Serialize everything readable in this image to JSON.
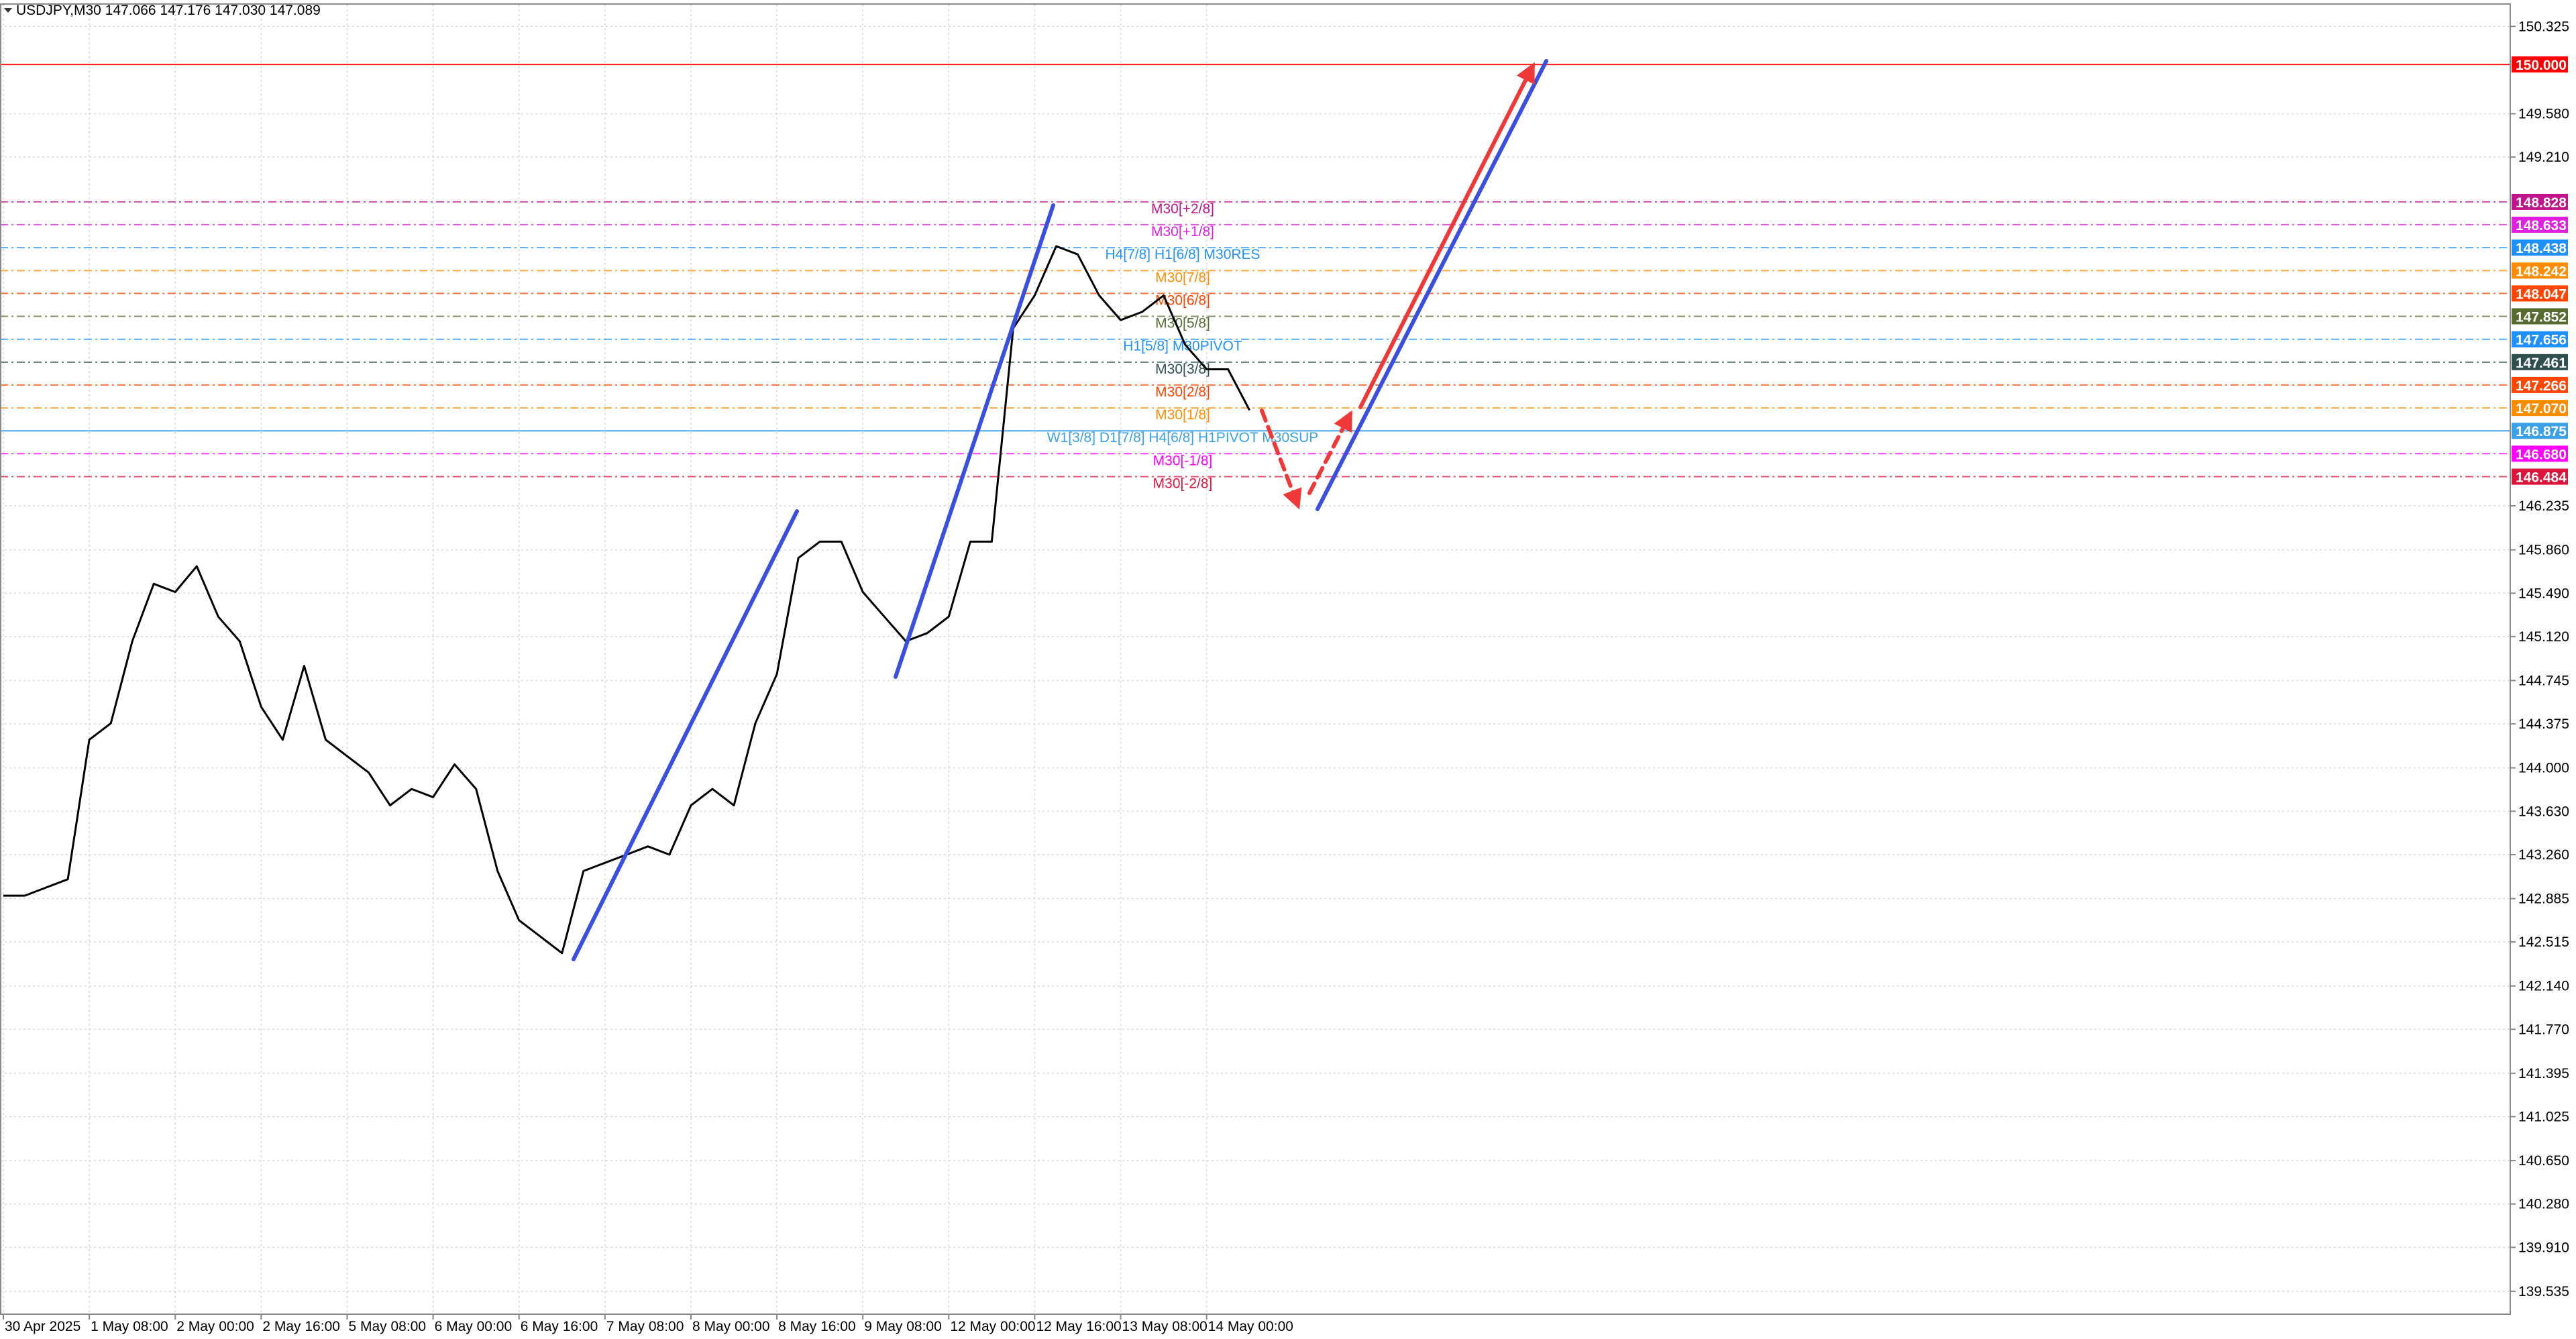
{
  "chart_data": {
    "type": "line",
    "title": "USDJPY,M30  147.066 147.176 147.030 147.089",
    "categories": [
      "30 Apr 2025",
      null,
      null,
      null,
      "1 May 08:00",
      null,
      null,
      null,
      "2 May 00:00",
      null,
      null,
      null,
      "2 May 16:00",
      null,
      null,
      null,
      "5 May 08:00",
      null,
      null,
      null,
      "6 May 00:00",
      null,
      null,
      null,
      "6 May 16:00",
      null,
      null,
      null,
      "7 May 08:00",
      null,
      null,
      null,
      "8 May 00:00",
      null,
      null,
      null,
      "8 May 16:00",
      null,
      null,
      null,
      "9 May 08:00",
      null,
      null,
      null,
      "12 May 00:00",
      null,
      null,
      null,
      "12 May 16:00",
      null,
      null,
      null,
      "13 May 08:00",
      null,
      null,
      null,
      "14 May 00:00",
      null,
      null
    ],
    "values": [
      142.91,
      142.91,
      142.98,
      143.05,
      144.24,
      144.38,
      145.08,
      145.57,
      145.5,
      145.72,
      145.29,
      145.08,
      144.52,
      144.24,
      144.87,
      144.24,
      144.1,
      143.96,
      143.68,
      143.82,
      143.75,
      144.03,
      143.82,
      143.12,
      142.7,
      142.56,
      142.42,
      143.12,
      143.19,
      143.26,
      143.33,
      143.26,
      143.68,
      143.82,
      143.68,
      144.38,
      144.8,
      145.79,
      145.93,
      145.93,
      145.5,
      145.29,
      145.08,
      145.15,
      145.29,
      145.93,
      145.93,
      147.75,
      148.03,
      148.45,
      148.38,
      148.03,
      147.82,
      147.89,
      148.03,
      147.61,
      147.4,
      147.4,
      147.05
    ],
    "color": "#000000",
    "ylim": [
      139.34,
      150.51
    ],
    "yticks": [
      150.325,
      {
        "value": 149.58,
        "label": "149.580"
      },
      {
        "value": 149.21,
        "label": "149.210"
      },
      146.235,
      {
        "value": 145.86,
        "label": "145.860"
      },
      {
        "value": 145.49,
        "label": "145.490"
      },
      {
        "value": 145.12,
        "label": "145.120"
      },
      144.745,
      144.375,
      {
        "value": 144,
        "label": "144.000"
      },
      {
        "value": 143.63,
        "label": "143.630"
      },
      {
        "value": 143.26,
        "label": "143.260"
      },
      142.885,
      142.515,
      {
        "value": 142.14,
        "label": "142.140"
      },
      {
        "value": 141.77,
        "label": "141.770"
      },
      141.395,
      141.025,
      {
        "value": 140.65,
        "label": "140.650"
      },
      {
        "value": 140.28,
        "label": "140.280"
      },
      {
        "value": 139.91,
        "label": "139.910"
      },
      139.535
    ],
    "grid": true,
    "levels": [
      {
        "value": 150,
        "value_label": "150.000",
        "color": "#ff0000"
      },
      {
        "value": 148.828,
        "name": "M30[+2/8]",
        "color": "#c0148c"
      },
      {
        "value": 148.633,
        "name": "M30[+1/8]",
        "color": "#e020e0"
      },
      {
        "value": 148.438,
        "name": "H4[7/8] H1[6/8] M30RES",
        "color": "#1e90ff"
      },
      {
        "value": 148.242,
        "name": "M30[7/8]",
        "color": "#ff8c00"
      },
      {
        "value": 148.047,
        "name": "M30[6/8]",
        "color": "#ff4500"
      },
      {
        "value": 147.852,
        "name": "M30[5/8]",
        "color": "#556b2f"
      },
      {
        "value": 147.656,
        "name": "H1[5/8] M30PIVOT",
        "color": "#1e90ff"
      },
      {
        "value": 147.461,
        "name": "M30[3/8]",
        "color": "#2f4f4f"
      },
      {
        "value": 147.266,
        "name": "M30[2/8]",
        "color": "#ff4500"
      },
      {
        "value": 147.07,
        "value_label": "147.070",
        "name": "M30[1/8]",
        "color": "#ff8c00"
      },
      {
        "value": 146.875,
        "name": "W1[3/8] D1[7/8] H4[6/8] H1PIVOT M30SUP",
        "color": "#3aa0e8"
      },
      {
        "value": 146.68,
        "value_label": "146.680",
        "name": "M30[-1/8]",
        "color": "#ff00ff"
      },
      {
        "value": 146.484,
        "name": "M30[-2/8]",
        "color": "#dc143c"
      }
    ]
  }
}
